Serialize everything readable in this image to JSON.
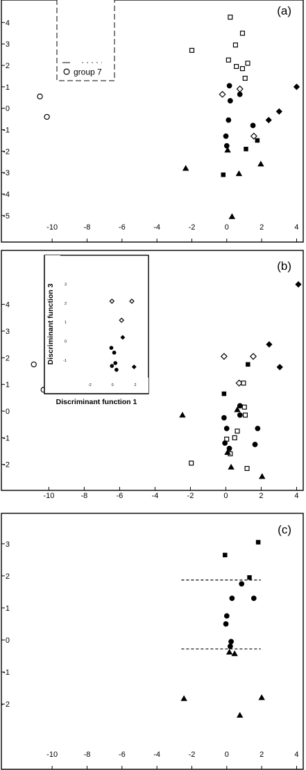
{
  "chart_data": [
    {
      "type": "scatter",
      "panel_label": "(a)",
      "xlim": [
        -10.8,
        4.1
      ],
      "ylim": [
        -5.2,
        4.4
      ],
      "x_ticks": [
        "-10",
        "-8",
        "-6",
        "-4",
        "-2",
        "0",
        "2",
        "4"
      ],
      "y_ticks": [
        "4",
        "3",
        "2",
        "1",
        "0",
        "-1",
        "-2",
        "-3",
        "-4",
        "-5"
      ],
      "legend": {
        "placement": "top-left",
        "entries": [
          {
            "marker": "circle-open",
            "label": "group 7"
          }
        ]
      },
      "series": [
        {
          "marker": "square-open",
          "points": [
            [
              0.2,
              4.25
            ],
            [
              0.9,
              3.5
            ],
            [
              0.5,
              2.95
            ],
            [
              -2.0,
              2.7
            ],
            [
              0.1,
              2.25
            ],
            [
              0.55,
              1.95
            ],
            [
              1.2,
              2.1
            ],
            [
              0.9,
              1.85
            ],
            [
              1.05,
              1.4
            ]
          ]
        },
        {
          "marker": "diamond-open",
          "points": [
            [
              -0.25,
              0.65
            ],
            [
              0.75,
              0.9
            ],
            [
              1.55,
              -1.3
            ]
          ]
        },
        {
          "marker": "circle-filled",
          "points": [
            [
              0.15,
              1.05
            ],
            [
              0.75,
              0.65
            ],
            [
              0.2,
              0.35
            ],
            [
              0.1,
              -0.55
            ],
            [
              -0.05,
              -1.3
            ],
            [
              1.5,
              -0.8
            ],
            [
              0.0,
              -1.75
            ]
          ]
        },
        {
          "marker": "diamond-filled",
          "points": [
            [
              4.0,
              1.0
            ],
            [
              3.0,
              -0.15
            ],
            [
              2.4,
              -0.55
            ]
          ]
        },
        {
          "marker": "square-filled",
          "points": [
            [
              1.1,
              -1.9
            ],
            [
              1.75,
              -1.5
            ],
            [
              -0.2,
              -3.1
            ]
          ]
        },
        {
          "marker": "triangle-filled",
          "points": [
            [
              0.05,
              -1.95
            ],
            [
              -2.35,
              -2.8
            ],
            [
              0.7,
              -3.05
            ],
            [
              1.95,
              -2.6
            ],
            [
              0.3,
              -5.05
            ]
          ]
        },
        {
          "marker": "circle-open",
          "points": [
            [
              -10.7,
              0.55
            ],
            [
              -10.3,
              -0.4
            ]
          ]
        }
      ]
    },
    {
      "type": "scatter",
      "panel_label": "(b)",
      "xlim": [
        -10.8,
        4.1
      ],
      "ylim": [
        -2.45,
        4.85
      ],
      "x_ticks": [
        "-10",
        "-8",
        "-6",
        "-4",
        "-2",
        "0",
        "2",
        "4"
      ],
      "y_ticks": [
        "4",
        "3",
        "2",
        "1",
        "0",
        "-1",
        "-2"
      ],
      "series": [
        {
          "marker": "diamond-filled",
          "points": [
            [
              4.1,
              4.75
            ],
            [
              2.45,
              2.5
            ],
            [
              3.05,
              1.65
            ]
          ]
        },
        {
          "marker": "diamond-open",
          "points": [
            [
              -0.1,
              2.05
            ],
            [
              1.55,
              2.05
            ],
            [
              0.75,
              1.05
            ]
          ]
        },
        {
          "marker": "square-filled",
          "points": [
            [
              1.25,
              1.75
            ],
            [
              -0.1,
              0.65
            ]
          ]
        },
        {
          "marker": "square-open",
          "points": [
            [
              1.0,
              1.05
            ],
            [
              1.05,
              0.15
            ],
            [
              1.1,
              -0.15
            ],
            [
              0.65,
              -0.75
            ],
            [
              0.05,
              -1.05
            ],
            [
              0.5,
              -1.0
            ],
            [
              0.25,
              -1.6
            ],
            [
              -1.95,
              -1.95
            ],
            [
              1.2,
              -2.15
            ]
          ]
        },
        {
          "marker": "circle-filled",
          "points": [
            [
              0.8,
              0.2
            ],
            [
              0.8,
              -0.15
            ],
            [
              1.8,
              -0.65
            ],
            [
              -0.1,
              -0.25
            ],
            [
              0.05,
              -0.65
            ],
            [
              1.65,
              -1.25
            ],
            [
              -0.05,
              -1.2
            ],
            [
              0.2,
              -1.4
            ]
          ]
        },
        {
          "marker": "triangle-filled",
          "points": [
            [
              0.65,
              0.05
            ],
            [
              -2.45,
              -0.15
            ],
            [
              0.1,
              -1.55
            ],
            [
              0.3,
              -2.1
            ],
            [
              2.05,
              -2.45
            ]
          ]
        },
        {
          "marker": "circle-open",
          "points": [
            [
              -10.85,
              1.75
            ],
            [
              -10.3,
              0.8
            ]
          ]
        }
      ],
      "inset": {
        "xlabel": "Discriminant function 1",
        "ylabel": "Discriminant function 3",
        "xlim": [
          -4.4,
          2.8
        ],
        "ylim": [
          -2.1,
          3.6
        ],
        "x_ticks": [
          "-2",
          "0",
          "2"
        ],
        "y_ticks": [
          "3",
          "2",
          "1",
          "0",
          "-1"
        ],
        "series": [
          {
            "marker": "diamond-open",
            "points": [
              [
                -0.05,
                2.1
              ],
              [
                1.7,
                2.1
              ],
              [
                0.8,
                1.1
              ]
            ]
          },
          {
            "marker": "diamond-filled",
            "points": [
              [
                0.9,
                0.2
              ],
              [
                1.9,
                -1.35
              ]
            ]
          },
          {
            "marker": "circle-filled",
            "points": [
              [
                -0.1,
                -0.35
              ],
              [
                0.15,
                -0.6
              ],
              [
                -0.05,
                -1.3
              ],
              [
                0.25,
                -1.15
              ],
              [
                0.35,
                -1.5
              ]
            ]
          }
        ]
      }
    },
    {
      "type": "scatter",
      "panel_label": "(c)",
      "xlim": [
        -10.8,
        4.1
      ],
      "ylim": [
        -2.3,
        3.3
      ],
      "x_ticks": [
        "-10",
        "-8",
        "-6",
        "-4",
        "-2",
        "0",
        "2",
        "4"
      ],
      "y_ticks": [
        "3",
        "2",
        "1",
        "0",
        "-1",
        "- 2"
      ],
      "reference_lines": [
        {
          "y": 1.87,
          "x_range": [
            -2.6,
            1.95
          ]
        },
        {
          "y": -0.28,
          "x_range": [
            -2.6,
            1.95
          ]
        }
      ],
      "series": [
        {
          "marker": "square-filled",
          "points": [
            [
              1.8,
              3.05
            ],
            [
              -0.1,
              2.65
            ],
            [
              1.3,
              1.95
            ]
          ]
        },
        {
          "marker": "circle-filled",
          "points": [
            [
              0.85,
              1.75
            ],
            [
              0.3,
              1.3
            ],
            [
              1.55,
              1.3
            ],
            [
              0.0,
              0.75
            ],
            [
              -0.05,
              0.5
            ],
            [
              0.25,
              -0.05
            ],
            [
              0.2,
              -0.2
            ]
          ]
        },
        {
          "marker": "triangle-filled",
          "points": [
            [
              0.15,
              -0.38
            ],
            [
              0.45,
              -0.43
            ],
            [
              -2.45,
              -1.83
            ],
            [
              2.0,
              -1.8
            ],
            [
              0.75,
              -2.35
            ]
          ]
        }
      ]
    }
  ]
}
